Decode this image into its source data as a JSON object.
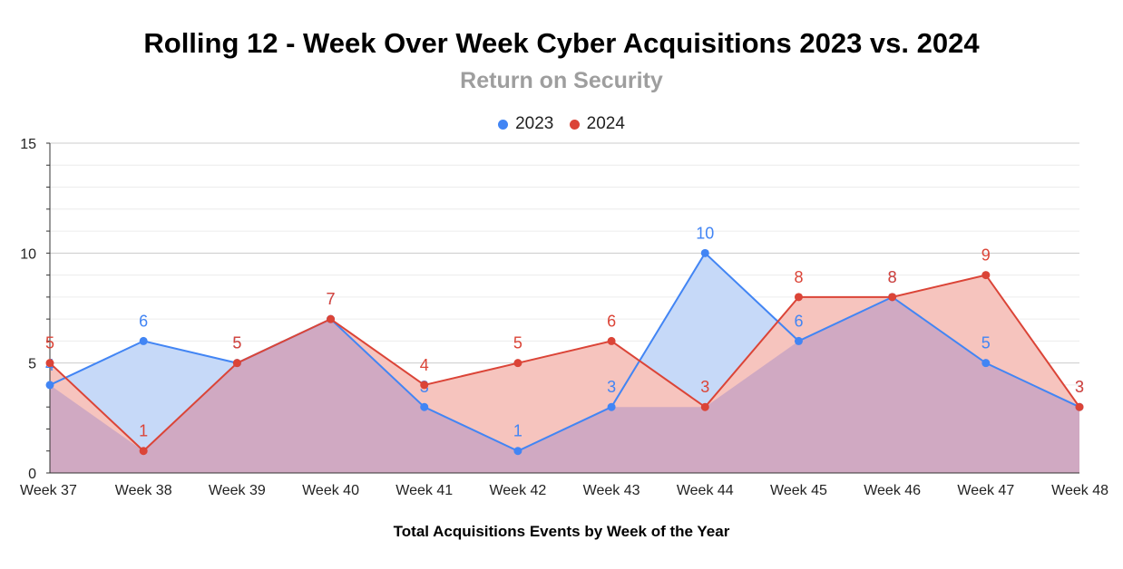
{
  "chart_data": {
    "type": "area",
    "title": "Rolling 12 - Week Over Week Cyber Acquisitions 2023 vs. 2024",
    "subtitle": "Return on Security",
    "xlabel": "Total Acquisitions Events by Week of the Year",
    "ylabel": "",
    "categories": [
      "Week 37",
      "Week 38",
      "Week 39",
      "Week 40",
      "Week 41",
      "Week 42",
      "Week 43",
      "Week 44",
      "Week 45",
      "Week 46",
      "Week 47",
      "Week 48"
    ],
    "ylim": [
      0,
      15
    ],
    "yticks": [
      0,
      5,
      10,
      15
    ],
    "grid": true,
    "legend_position": "top",
    "series": [
      {
        "name": "2023",
        "color": "#4285f4",
        "fill": "#c6d9f8",
        "values": [
          4,
          6,
          5,
          7,
          3,
          1,
          3,
          10,
          6,
          8,
          5,
          3
        ]
      },
      {
        "name": "2024",
        "color": "#db4437",
        "fill": "#f6c4be",
        "values": [
          5,
          1,
          5,
          7,
          4,
          5,
          6,
          3,
          8,
          8,
          9,
          3
        ]
      }
    ],
    "overlap_fill": "#d0a9c2"
  }
}
